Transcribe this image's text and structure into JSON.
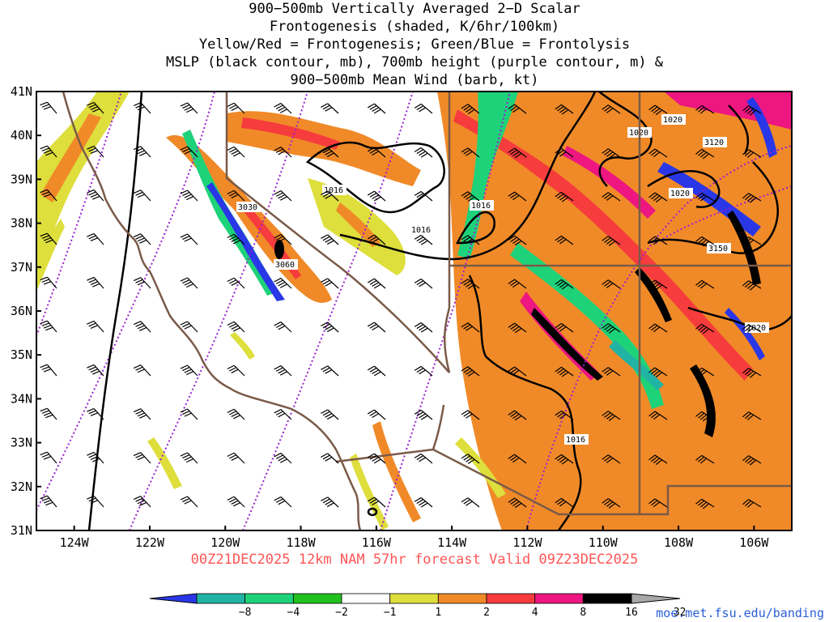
{
  "title_lines": [
    "900−500mb Vertically Averaged 2−D Scalar",
    "Frontogenesis (shaded, K/6hr/100km)",
    "Yellow/Red = Frontogenesis;  Green/Blue = Frontolysis",
    "MSLP (black contour, mb), 700mb height (purple contour, m) &",
    "900−500mb Mean Wind (barb, kt)"
  ],
  "valid_line": "00Z21DEC2025 12km NAM 57hr forecast Valid 09Z23DEC2025",
  "credit": "moe.met.fsu.edu/banding",
  "map": {
    "lon_range": [
      -125,
      -105
    ],
    "lat_range": [
      31,
      41
    ],
    "lat_labels": [
      "41N",
      "40N",
      "39N",
      "38N",
      "37N",
      "36N",
      "35N",
      "34N",
      "33N",
      "32N",
      "31N"
    ],
    "lon_labels": [
      "124W",
      "122W",
      "120W",
      "118W",
      "116W",
      "114W",
      "112W",
      "110W",
      "108W",
      "106W"
    ],
    "mslp_labels": [
      "1016",
      "1016",
      "1016",
      "1016",
      "1020",
      "1020",
      "1020",
      "1020"
    ],
    "height_labels": [
      "3030",
      "3060",
      "3120",
      "3150"
    ]
  },
  "colorbar": {
    "labels": [
      "−8",
      "−4",
      "−2",
      "−1",
      "1",
      "2",
      "4",
      "8",
      "16",
      "32"
    ],
    "colors": [
      "#2a37e6",
      "#21b3a4",
      "#1ed27a",
      "#21c11e",
      "#ffffff",
      "#dede3c",
      "#f08a28",
      "#f63c3c",
      "#ee1680",
      "#000000",
      "#a8a8a8"
    ]
  }
}
